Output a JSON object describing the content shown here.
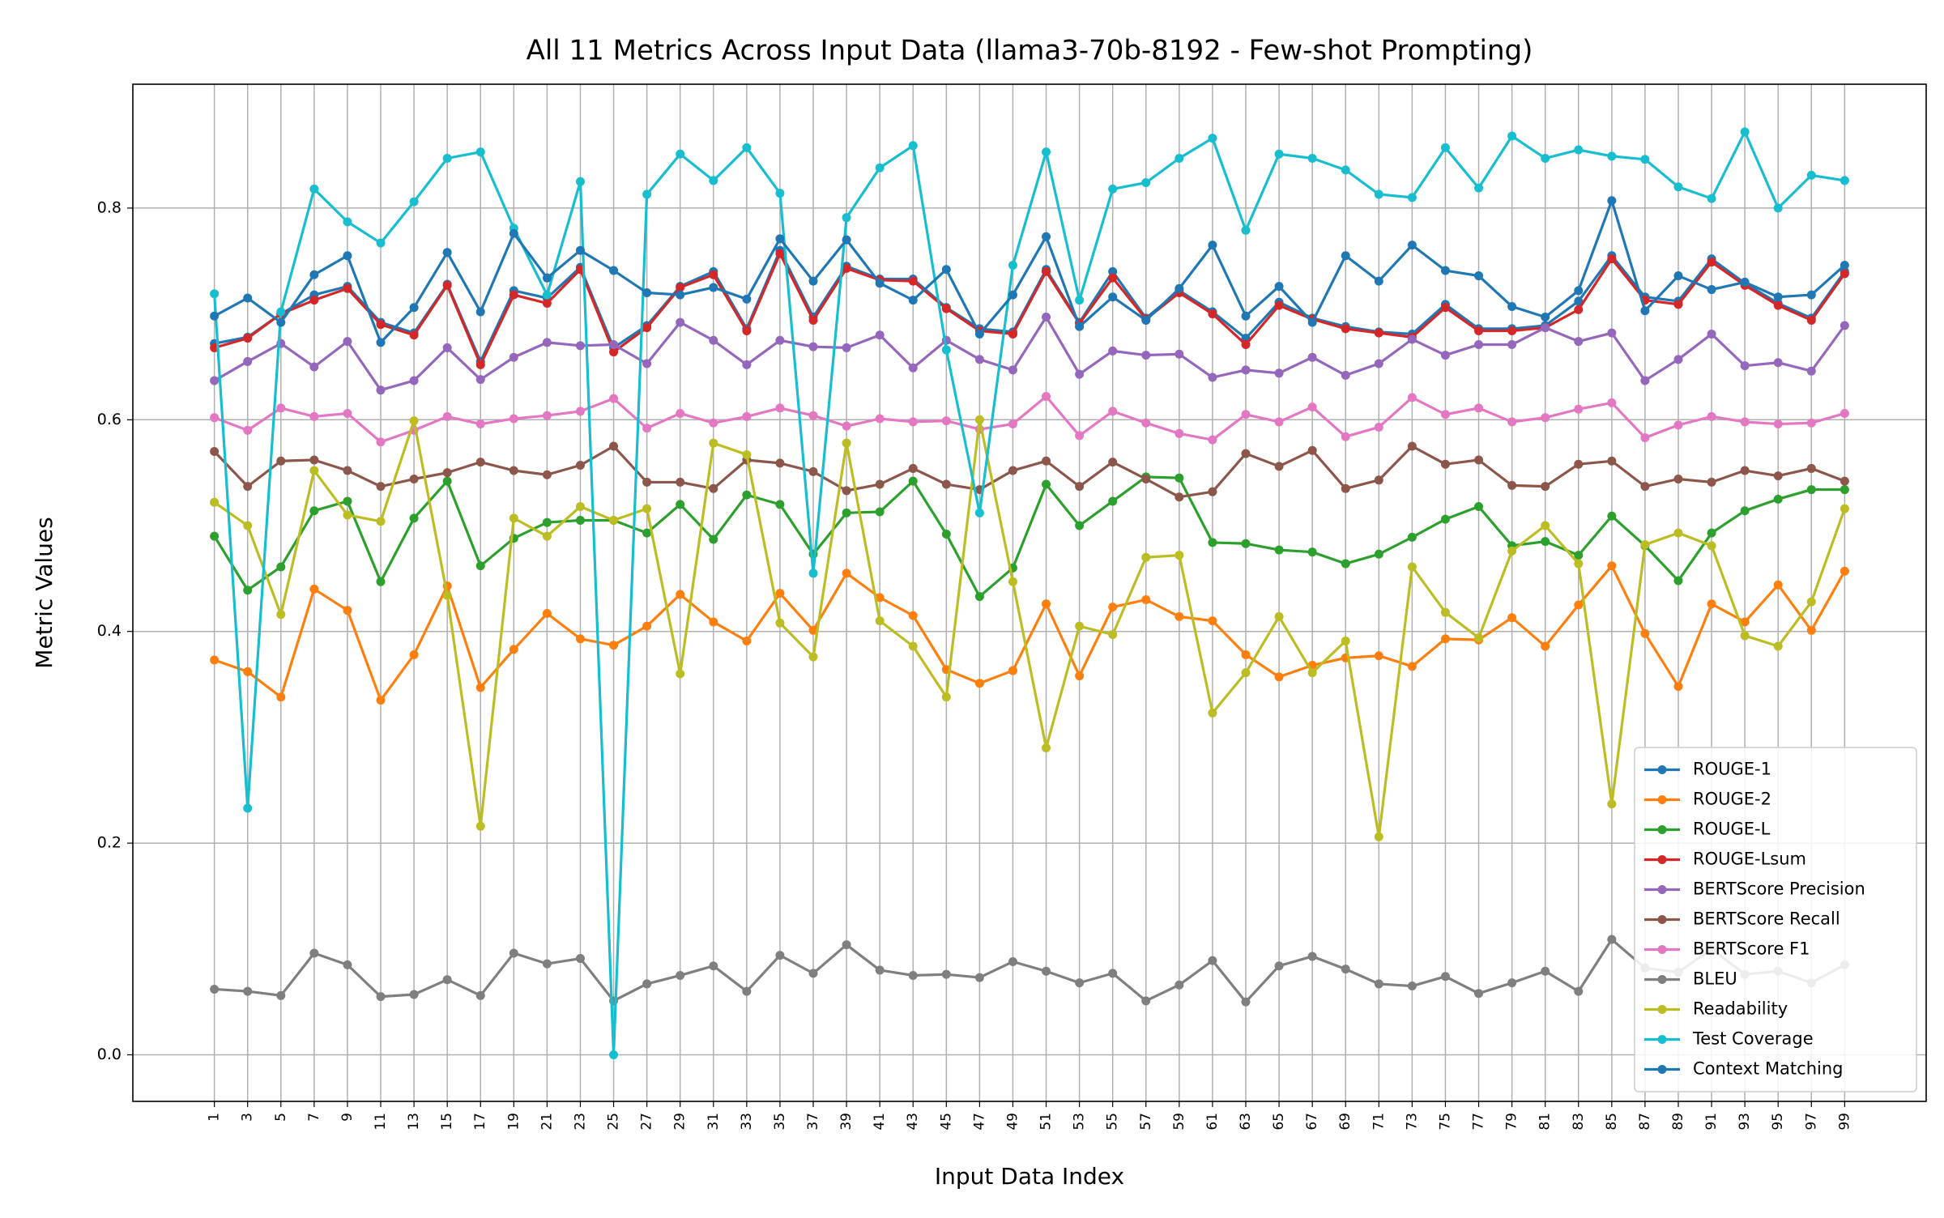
{
  "chart_data": {
    "type": "line",
    "title": "All 11 Metrics Across Input Data (llama3-70b-8192 - Few-shot Prompting)",
    "x_label": "Input Data Index",
    "y_label": "Metric Values",
    "x": [
      1,
      3,
      5,
      7,
      9,
      11,
      13,
      15,
      17,
      19,
      21,
      23,
      25,
      27,
      29,
      31,
      33,
      35,
      37,
      39,
      41,
      43,
      45,
      47,
      49,
      51,
      53,
      55,
      57,
      59,
      61,
      63,
      65,
      67,
      69,
      71,
      73,
      75,
      77,
      79,
      81,
      83,
      85,
      87,
      89,
      91,
      93,
      95,
      97,
      99
    ],
    "xlim": [
      -3.9,
      103.9
    ],
    "xticks": [
      1,
      3,
      5,
      7,
      9,
      11,
      13,
      15,
      17,
      19,
      21,
      23,
      25,
      27,
      29,
      31,
      33,
      35,
      37,
      39,
      41,
      43,
      45,
      47,
      49,
      51,
      53,
      55,
      57,
      59,
      61,
      63,
      65,
      67,
      69,
      71,
      73,
      75,
      77,
      79,
      81,
      83,
      85,
      87,
      89,
      91,
      93,
      95,
      97,
      99
    ],
    "ylim": [
      -0.044,
      0.917
    ],
    "yticks": [
      {
        "value": 0,
        "label": "0.0"
      },
      0.2,
      0.4,
      0.6,
      0.8
    ],
    "grid": true,
    "legend_loc": "lower right",
    "series": [
      {
        "name": "ROUGE-1",
        "color": "#1f77b4",
        "values": [
          0.672,
          0.678,
          0.7,
          0.718,
          0.726,
          0.692,
          0.682,
          0.728,
          0.655,
          0.722,
          0.715,
          0.744,
          0.668,
          0.689,
          0.726,
          0.74,
          0.686,
          0.76,
          0.697,
          0.745,
          0.733,
          0.733,
          0.706,
          0.686,
          0.683,
          0.742,
          0.692,
          0.74,
          0.696,
          0.722,
          0.702,
          0.677,
          0.711,
          0.696,
          0.688,
          0.683,
          0.681,
          0.709,
          0.686,
          0.686,
          0.689,
          0.712,
          0.755,
          0.716,
          0.712,
          0.752,
          0.729,
          0.71,
          0.696,
          0.74
        ]
      },
      {
        "name": "ROUGE-2",
        "color": "#ff7f0e",
        "values": [
          0.373,
          0.362,
          0.338,
          0.44,
          0.42,
          0.335,
          0.378,
          0.443,
          0.347,
          0.383,
          0.417,
          0.393,
          0.387,
          0.405,
          0.435,
          0.409,
          0.391,
          0.436,
          0.401,
          0.455,
          0.432,
          0.415,
          0.364,
          0.351,
          0.363,
          0.426,
          0.358,
          0.423,
          0.43,
          0.414,
          0.41,
          0.378,
          0.357,
          0.368,
          0.375,
          0.377,
          0.367,
          0.393,
          0.392,
          0.413,
          0.386,
          0.425,
          0.462,
          0.398,
          0.348,
          0.426,
          0.409,
          0.444,
          0.401,
          0.457
        ]
      },
      {
        "name": "ROUGE-L",
        "color": "#2ca02c",
        "values": [
          0.49,
          0.439,
          0.461,
          0.514,
          0.523,
          0.447,
          0.507,
          0.542,
          0.462,
          0.488,
          0.503,
          0.505,
          0.505,
          0.493,
          0.52,
          0.487,
          0.529,
          0.52,
          0.473,
          0.512,
          0.513,
          0.542,
          0.492,
          0.433,
          0.46,
          0.539,
          0.5,
          0.523,
          0.546,
          0.545,
          0.484,
          0.483,
          0.477,
          0.475,
          0.464,
          0.473,
          0.489,
          0.506,
          0.518,
          0.481,
          0.485,
          0.472,
          0.509,
          0.481,
          0.448,
          0.493,
          0.514,
          0.525,
          0.534,
          0.534
        ]
      },
      {
        "name": "ROUGE-Lsum",
        "color": "#d62728",
        "values": [
          0.668,
          0.677,
          0.7,
          0.713,
          0.724,
          0.69,
          0.68,
          0.727,
          0.652,
          0.718,
          0.71,
          0.742,
          0.664,
          0.687,
          0.725,
          0.737,
          0.684,
          0.757,
          0.694,
          0.743,
          0.732,
          0.731,
          0.705,
          0.684,
          0.681,
          0.74,
          0.691,
          0.734,
          0.695,
          0.72,
          0.7,
          0.671,
          0.708,
          0.695,
          0.686,
          0.682,
          0.678,
          0.706,
          0.684,
          0.684,
          0.687,
          0.704,
          0.752,
          0.713,
          0.709,
          0.749,
          0.727,
          0.708,
          0.694,
          0.738
        ]
      },
      {
        "name": "BERTScore Precision",
        "color": "#9467bd",
        "values": [
          0.637,
          0.655,
          0.672,
          0.65,
          0.674,
          0.628,
          0.637,
          0.668,
          0.638,
          0.659,
          0.673,
          0.67,
          0.671,
          0.653,
          0.692,
          0.675,
          0.652,
          0.675,
          0.669,
          0.668,
          0.68,
          0.649,
          0.675,
          0.657,
          0.647,
          0.697,
          0.643,
          0.665,
          0.661,
          0.662,
          0.64,
          0.647,
          0.644,
          0.659,
          0.642,
          0.653,
          0.676,
          0.661,
          0.671,
          0.671,
          0.687,
          0.674,
          0.682,
          0.637,
          0.657,
          0.681,
          0.651,
          0.654,
          0.646,
          0.689
        ]
      },
      {
        "name": "BERTScore Recall",
        "color": "#8c564b",
        "values": [
          0.57,
          0.537,
          0.561,
          0.562,
          0.552,
          0.537,
          0.544,
          0.55,
          0.56,
          0.552,
          0.548,
          0.557,
          0.575,
          0.541,
          0.541,
          0.535,
          0.562,
          0.559,
          0.551,
          0.533,
          0.539,
          0.554,
          0.539,
          0.534,
          0.552,
          0.561,
          0.537,
          0.56,
          0.544,
          0.527,
          0.532,
          0.568,
          0.556,
          0.571,
          0.535,
          0.543,
          0.575,
          0.558,
          0.562,
          0.538,
          0.537,
          0.558,
          0.561,
          0.537,
          0.544,
          0.541,
          0.552,
          0.547,
          0.554,
          0.542
        ]
      },
      {
        "name": "BERTScore F1",
        "color": "#e377c2",
        "values": [
          0.602,
          0.59,
          0.611,
          0.603,
          0.606,
          0.579,
          0.59,
          0.603,
          0.596,
          0.601,
          0.604,
          0.608,
          0.62,
          0.592,
          0.606,
          0.597,
          0.603,
          0.611,
          0.604,
          0.594,
          0.601,
          0.598,
          0.599,
          0.591,
          0.596,
          0.622,
          0.585,
          0.608,
          0.597,
          0.587,
          0.581,
          0.605,
          0.598,
          0.612,
          0.584,
          0.593,
          0.621,
          0.605,
          0.611,
          0.598,
          0.602,
          0.61,
          0.616,
          0.583,
          0.595,
          0.603,
          0.598,
          0.596,
          0.597,
          0.606
        ]
      },
      {
        "name": "BLEU",
        "color": "#7f7f7f",
        "values": [
          0.062,
          0.06,
          0.056,
          0.096,
          0.085,
          0.055,
          0.057,
          0.071,
          0.056,
          0.096,
          0.086,
          0.091,
          0.051,
          0.067,
          0.075,
          0.084,
          0.06,
          0.094,
          0.077,
          0.104,
          0.08,
          0.075,
          0.076,
          0.073,
          0.088,
          0.079,
          0.068,
          0.077,
          0.051,
          0.066,
          0.089,
          0.05,
          0.084,
          0.093,
          0.081,
          0.067,
          0.065,
          0.074,
          0.058,
          0.068,
          0.079,
          0.06,
          0.109,
          0.082,
          0.078,
          0.1,
          0.076,
          0.079,
          0.068,
          0.085
        ]
      },
      {
        "name": "Readability",
        "color": "#bcbd22",
        "values": [
          0.522,
          0.5,
          0.416,
          0.552,
          0.51,
          0.504,
          0.599,
          0.434,
          0.216,
          0.507,
          0.49,
          0.518,
          0.505,
          0.516,
          0.36,
          0.578,
          0.567,
          0.408,
          0.376,
          0.578,
          0.41,
          0.386,
          0.338,
          0.6,
          0.447,
          0.29,
          0.405,
          0.397,
          0.47,
          0.472,
          0.323,
          0.361,
          0.414,
          0.361,
          0.391,
          0.206,
          0.461,
          0.418,
          0.394,
          0.476,
          0.5,
          0.464,
          0.237,
          0.482,
          0.493,
          0.481,
          0.396,
          0.386,
          0.428,
          0.516
        ]
      },
      {
        "name": "Test Coverage",
        "color": "#17becf",
        "values": [
          0.719,
          0.233,
          0.702,
          0.818,
          0.787,
          0.767,
          0.806,
          0.847,
          0.853,
          0.781,
          0.718,
          0.825,
          0.0,
          0.813,
          0.851,
          0.826,
          0.857,
          0.814,
          0.455,
          0.791,
          0.838,
          0.859,
          0.666,
          0.512,
          0.746,
          0.853,
          0.713,
          0.818,
          0.824,
          0.847,
          0.866,
          0.779,
          0.851,
          0.847,
          0.836,
          0.813,
          0.81,
          0.857,
          0.819,
          0.868,
          0.847,
          0.855,
          0.849,
          0.846,
          0.82,
          0.809,
          0.872,
          0.8,
          0.831,
          0.826
        ]
      },
      {
        "name": "Context Matching",
        "color": "#1f77b4",
        "values": [
          0.698,
          0.715,
          0.692,
          0.737,
          0.755,
          0.673,
          0.706,
          0.758,
          0.702,
          0.776,
          0.734,
          0.76,
          0.741,
          0.72,
          0.718,
          0.725,
          0.714,
          0.771,
          0.731,
          0.77,
          0.729,
          0.713,
          0.742,
          0.681,
          0.718,
          0.773,
          0.688,
          0.716,
          0.694,
          0.724,
          0.765,
          0.698,
          0.726,
          0.692,
          0.755,
          0.731,
          0.765,
          0.741,
          0.736,
          0.707,
          0.697,
          0.722,
          0.807,
          0.703,
          0.736,
          0.723,
          0.73,
          0.716,
          0.718,
          0.746
        ]
      }
    ]
  }
}
